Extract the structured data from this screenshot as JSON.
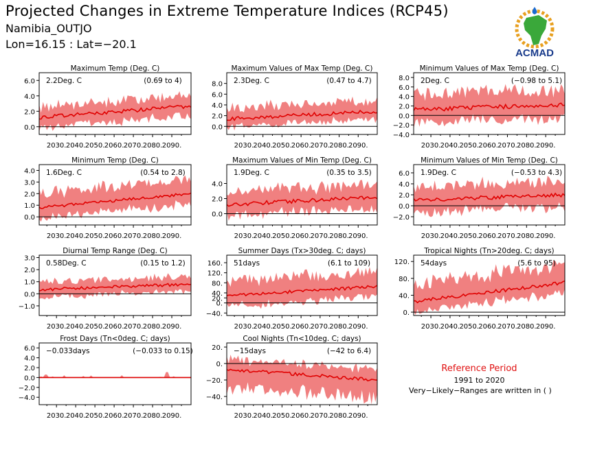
{
  "header": {
    "title": "Projected Changes in Extreme Temperature Indices (RCP45)",
    "region": "Namibia_OUTJO",
    "coords": "Lon=16.15 : Lat=−20.1"
  },
  "logo": {
    "text": "ACMAD"
  },
  "reference": {
    "title": "Reference Period",
    "years": "1991 to 2020",
    "note": "Very−Likely−Ranges are written in ( )"
  },
  "colors": {
    "band": "#f08080",
    "line": "#e00000",
    "zero": "#000000",
    "logo_green": "#3aa83a",
    "logo_blue": "#1a3c8c",
    "logo_gold": "#e8a020"
  },
  "x_tick_labels": [
    "2030.",
    "2040.",
    "2050.",
    "2060.",
    "2070.",
    "2080.",
    "2090."
  ],
  "chart_data": [
    {
      "type": "area",
      "title": "Maximum Temp (Deg. C)",
      "value_label": "2.2Deg. C",
      "range_label": "(0.69 to 4)",
      "ylim": [
        -1,
        7
      ],
      "yticks": [
        0,
        2,
        4,
        6
      ],
      "ytick_labels": [
        "0.0",
        "2.0",
        "4.0",
        "6.0"
      ],
      "x_range": [
        2021,
        2100
      ],
      "start": 1.2,
      "end": 2.7,
      "band_low": 1.3,
      "band_high": 1.3,
      "noise": 0.25
    },
    {
      "type": "area",
      "title": "Maximum Values of Max Temp (Deg. C)",
      "value_label": "2.3Deg. C",
      "range_label": "(0.47 to 4.7)",
      "ylim": [
        -1.5,
        10
      ],
      "yticks": [
        0,
        2,
        4,
        6,
        8
      ],
      "ytick_labels": [
        "0.0",
        "2.0",
        "4.0",
        "6.0",
        "8.0"
      ],
      "x_range": [
        2021,
        2100
      ],
      "start": 1.4,
      "end": 2.8,
      "band_low": 1.4,
      "band_high": 2.0,
      "noise": 0.35
    },
    {
      "type": "area",
      "title": "Minimum Values of Max Temp (Deg. C)",
      "value_label": "2Deg. C",
      "range_label": "(−0.98 to 5.1)",
      "ylim": [
        -4,
        9
      ],
      "yticks": [
        -4,
        -2,
        0,
        2,
        4,
        6,
        8
      ],
      "ytick_labels": [
        "−4.0",
        "−2.0",
        "0.0",
        "2.0",
        "4.0",
        "6.0",
        "8.0"
      ],
      "x_range": [
        2021,
        2100
      ],
      "start": 1.2,
      "end": 2.3,
      "band_low": 2.8,
      "band_high": 3.0,
      "noise": 0.45
    },
    {
      "type": "area",
      "title": "Minimum Temp (Deg. C)",
      "value_label": "1.6Deg. C",
      "range_label": "(0.54 to 2.8)",
      "ylim": [
        -0.7,
        4.5
      ],
      "yticks": [
        0,
        1,
        2,
        3,
        4
      ],
      "ytick_labels": [
        "0.0",
        "1.0",
        "2.0",
        "3.0",
        "4.0"
      ],
      "x_range": [
        2021,
        2100
      ],
      "start": 0.8,
      "end": 2.0,
      "band_low": 0.9,
      "band_high": 1.2,
      "noise": 0.12
    },
    {
      "type": "area",
      "title": "Maximum Values of Min Temp (Deg. C)",
      "value_label": "1.9Deg. C",
      "range_label": "(0.35 to 3.5)",
      "ylim": [
        -1.5,
        6.5
      ],
      "yticks": [
        0,
        2,
        4
      ],
      "ytick_labels": [
        "0.0",
        "2.0",
        "4.0"
      ],
      "x_range": [
        2021,
        2100
      ],
      "start": 1.2,
      "end": 2.2,
      "band_low": 1.4,
      "band_high": 1.6,
      "noise": 0.25
    },
    {
      "type": "area",
      "title": "Minimum Values of Min Temp (Deg. C)",
      "value_label": "1.9Deg. C",
      "range_label": "(−0.53 to 4.3)",
      "ylim": [
        -3.5,
        7.5
      ],
      "yticks": [
        -2,
        0,
        2,
        4,
        6
      ],
      "ytick_labels": [
        "−2.0",
        "0.0",
        "2.0",
        "4.0",
        "6.0"
      ],
      "x_range": [
        2021,
        2100
      ],
      "start": 1.0,
      "end": 2.0,
      "band_low": 2.2,
      "band_high": 2.4,
      "noise": 0.35
    },
    {
      "type": "area",
      "title": "Diurnal Temp Range (Deg. C)",
      "value_label": "0.58Deg. C",
      "range_label": "(0.15 to 1.2)",
      "ylim": [
        -1.8,
        3.2
      ],
      "yticks": [
        -1,
        0,
        1,
        2,
        3
      ],
      "ytick_labels": [
        "−1.0",
        "0.0",
        "1.0",
        "2.0",
        "3.0"
      ],
      "x_range": [
        2021,
        2100
      ],
      "start": 0.35,
      "end": 0.8,
      "band_low": 0.6,
      "band_high": 0.6,
      "noise": 0.12
    },
    {
      "type": "area",
      "title": "Summer Days (Tx>30deg. C; days)",
      "value_label": "51days",
      "range_label": "(6.1 to 109)",
      "ylim": [
        -50,
        190
      ],
      "yticks": [
        -40,
        0,
        20,
        40,
        80,
        120,
        160
      ],
      "ytick_labels": [
        "−40.",
        "0.",
        "20.",
        "40.",
        "80.",
        "120.",
        "160."
      ],
      "x_range": [
        2021,
        2100
      ],
      "start": 30,
      "end": 65,
      "band_low": 40,
      "band_high": 55,
      "noise": 6
    },
    {
      "type": "area",
      "title": "Tropical Nights (Tn>20deg. C; days)",
      "value_label": "54days",
      "range_label": "(5.6 to 95)",
      "ylim": [
        -8,
        135
      ],
      "yticks": [
        0,
        40,
        80,
        120
      ],
      "ytick_labels": [
        "0.",
        "40.",
        "80.",
        "120."
      ],
      "x_range": [
        2021,
        2100
      ],
      "start": 25,
      "end": 70,
      "band_low": 25,
      "band_high": 40,
      "noise": 4
    },
    {
      "type": "area",
      "title": "Frost Days (Tn<0deg. C; days)",
      "value_label": "−0.033days",
      "range_label": "(−0.033 to 0.15)",
      "ylim": [
        -5.5,
        7
      ],
      "yticks": [
        -4,
        -2,
        0,
        2,
        4,
        6
      ],
      "ytick_labels": [
        "−4.0",
        "−2.0",
        "0.0",
        "2.0",
        "4.0",
        "6.0"
      ],
      "x_range": [
        2021,
        2100
      ],
      "start": 0,
      "end": 0,
      "band_low": 0,
      "band_high": 0.1,
      "noise": 0,
      "frost": true
    },
    {
      "type": "area",
      "title": "Cool Nights (Tn<10deg. C; days)",
      "value_label": "−15days",
      "range_label": "(−42 to 6.4)",
      "ylim": [
        -50,
        25
      ],
      "yticks": [
        -40,
        -20,
        0,
        20
      ],
      "ytick_labels": [
        "−40.",
        "−20.",
        "0.",
        "20."
      ],
      "x_range": [
        2021,
        2100
      ],
      "start": -7,
      "end": -20,
      "band_low": 22,
      "band_high": 12,
      "noise": 2
    }
  ]
}
